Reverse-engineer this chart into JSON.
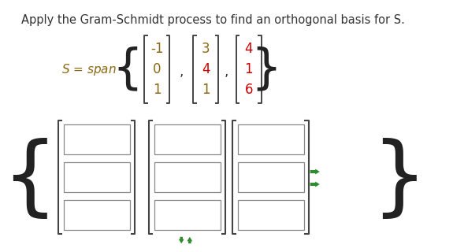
{
  "title_text": "Apply the Gram-Schmidt process to find an orthogonal basis for S.",
  "title_color": "#333333",
  "title_fontsize": 10.5,
  "bg_color": "#ffffff",
  "span_label": "S = span",
  "vec1": [
    "-1",
    "0",
    "1"
  ],
  "vec2": [
    "3",
    "4",
    "1"
  ],
  "vec3": [
    "4",
    "1",
    "6"
  ],
  "vec1_color": "#8B6914",
  "vec2_color": "#8B6914",
  "vec2_red_index": 1,
  "vec3_color": "#cc0000",
  "arrow_color": "#2e8b2e",
  "bracket_color": "#444444",
  "curly_color": "#222222",
  "text_color": "#333333",
  "figw": 5.75,
  "figh": 3.2
}
